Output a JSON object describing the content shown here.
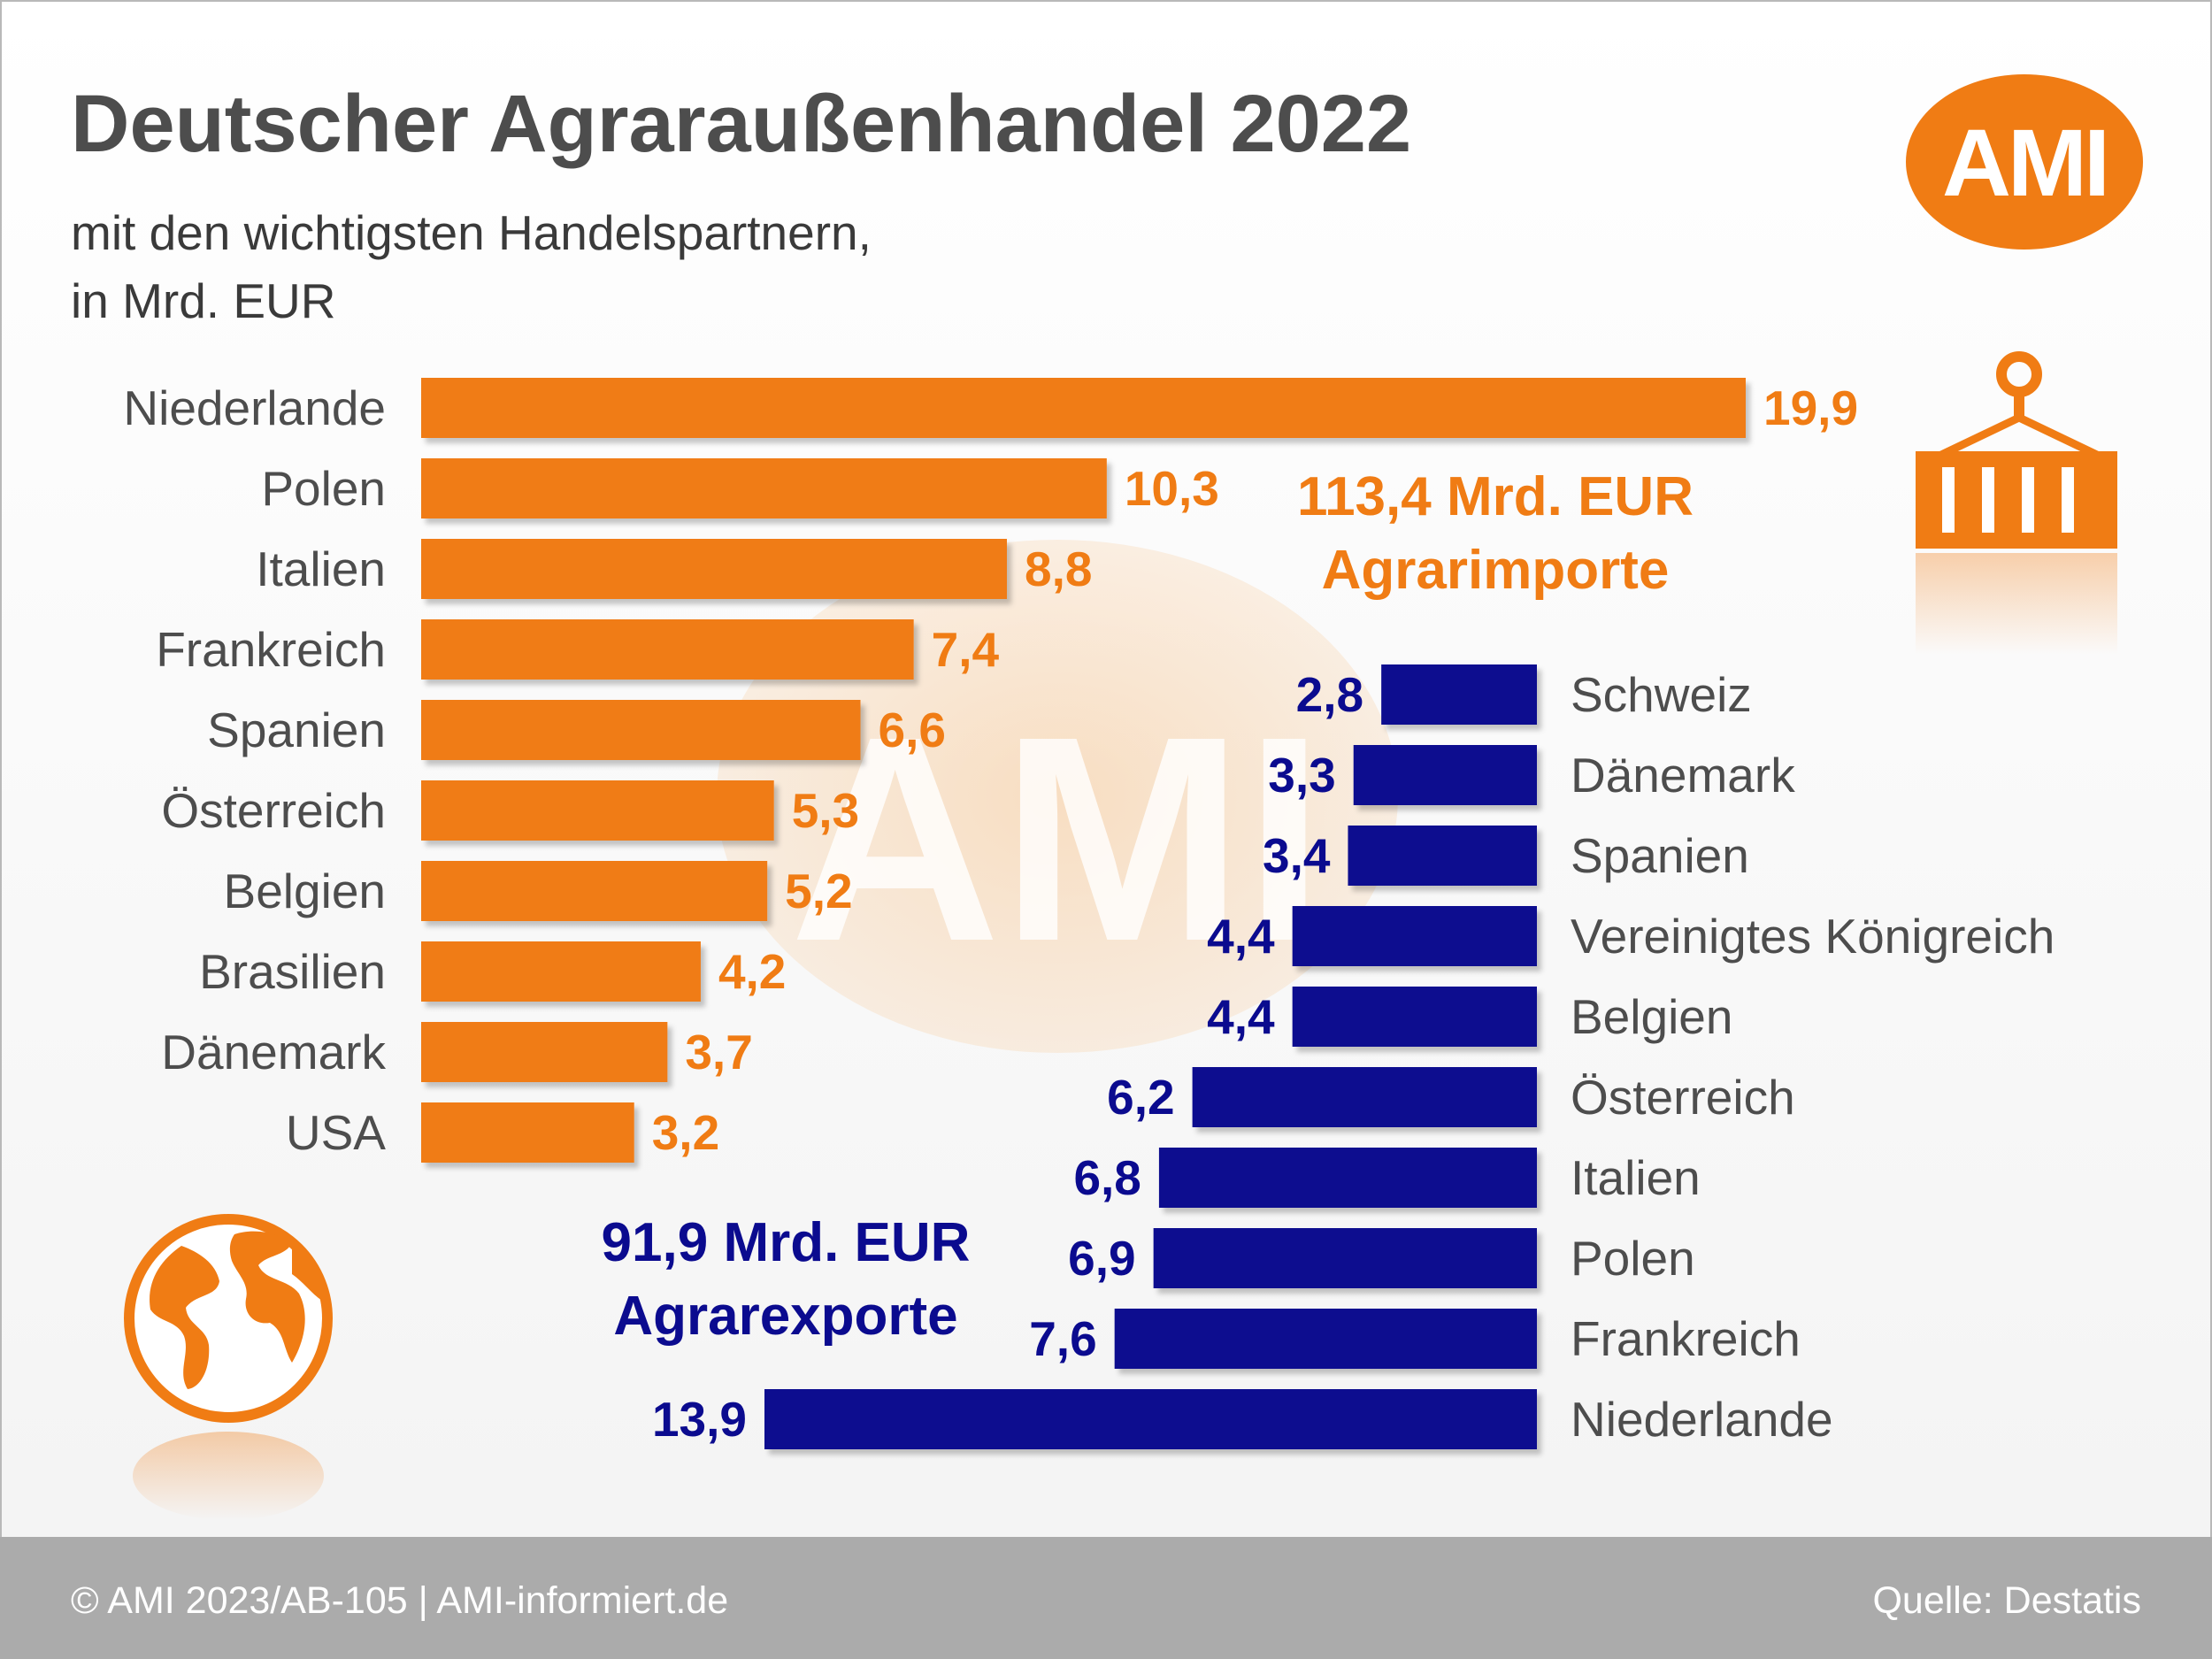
{
  "title": "Deutscher Agraraußenhandel 2022",
  "subtitle": [
    "mit den wichtigsten Handelspartnern,",
    "in Mrd. EUR"
  ],
  "logo": "AMI",
  "watermark": "AMI",
  "footer": {
    "left": "© AMI 2023/AB-105 | AMI-informiert.de",
    "right": "Quelle: Destatis"
  },
  "colors": {
    "imports": "#f07c14",
    "exports": "#0b0b8f",
    "text": "#4d4d4d",
    "footer": "#ababab"
  },
  "icons": {
    "imports": "shipping-container-icon",
    "exports": "globe-icon"
  },
  "chart_data": {
    "type": "bar",
    "orientation": "horizontal",
    "decimal_separator": ",",
    "series": [
      {
        "name": "Agrarimporte",
        "total_label": [
          "113,4 Mrd. EUR",
          "Agrarimporte"
        ],
        "color": "#f07c14",
        "categories": [
          "Niederlande",
          "Polen",
          "Italien",
          "Frankreich",
          "Spanien",
          "Österreich",
          "Belgien",
          "Brasilien",
          "Dänemark",
          "USA"
        ],
        "values": [
          19.9,
          10.3,
          8.8,
          7.4,
          6.6,
          5.3,
          5.2,
          4.2,
          3.7,
          3.2
        ]
      },
      {
        "name": "Agrarexporte",
        "total_label": [
          "91,9 Mrd. EUR",
          "Agrarexporte"
        ],
        "color": "#0b0b8f",
        "categories": [
          "Schweiz",
          "Dänemark",
          "Spanien",
          "Vereinigtes Königreich",
          "Belgien",
          "Österreich",
          "Italien",
          "Polen",
          "Frankreich",
          "Niederlande"
        ],
        "values": [
          2.8,
          3.3,
          3.4,
          4.4,
          4.4,
          6.2,
          6.8,
          6.9,
          7.6,
          13.9
        ]
      }
    ]
  }
}
